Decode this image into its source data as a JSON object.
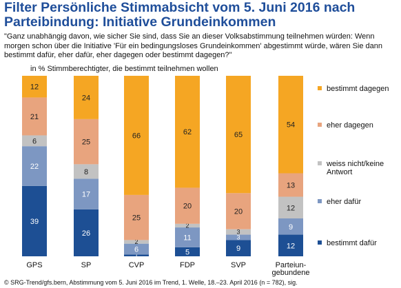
{
  "title": "Filter Persönliche Stimmabsicht vom 5. Juni 2016 nach Parteibindung: Initiative Grundeinkommen",
  "question": "\"Ganz unabhängig davon, wie sicher Sie sind, dass Sie an dieser Volksabstimmung teilnehmen würden: Wenn morgen schon über die Initiative 'Für ein bedingungsloses Grundeinkommen' abgestimmt würde, wären Sie dann bestimmt dafür, eher dafür, eher dagegen oder bestimmt dagegen?\"",
  "unit_label": "in % Stimmberechtigter, die bestimmt teilnehmen wollen",
  "footer": "© SRG-Trend/gfs.bern, Abstimmung vom 5. Juni 2016 im Trend, 1. Welle, 18.–23. April 2016 (n = 782), sig.",
  "chart_data": {
    "type": "bar",
    "stacked": true,
    "categories": [
      "GPS",
      "SP",
      "CVP",
      "FDP",
      "SVP",
      "Parteiun-\ngebundene"
    ],
    "series": [
      {
        "name": "bestimmt dafür",
        "color": "#1d4f94",
        "values": [
          39,
          26,
          1,
          5,
          9,
          12
        ]
      },
      {
        "name": "eher dafür",
        "color": "#7d97c2",
        "values": [
          22,
          17,
          6,
          11,
          3,
          9
        ]
      },
      {
        "name": "weiss nicht/keine Antwort",
        "color": "#c2c2c2",
        "values": [
          6,
          8,
          2,
          2,
          3,
          12
        ]
      },
      {
        "name": "eher dagegen",
        "color": "#e8a47e",
        "values": [
          21,
          25,
          25,
          20,
          20,
          13
        ]
      },
      {
        "name": "bestimmt dagegen",
        "color": "#f5a623",
        "values": [
          12,
          24,
          66,
          62,
          65,
          54
        ]
      }
    ],
    "ylim": [
      0,
      100
    ],
    "legend_position": "right"
  }
}
